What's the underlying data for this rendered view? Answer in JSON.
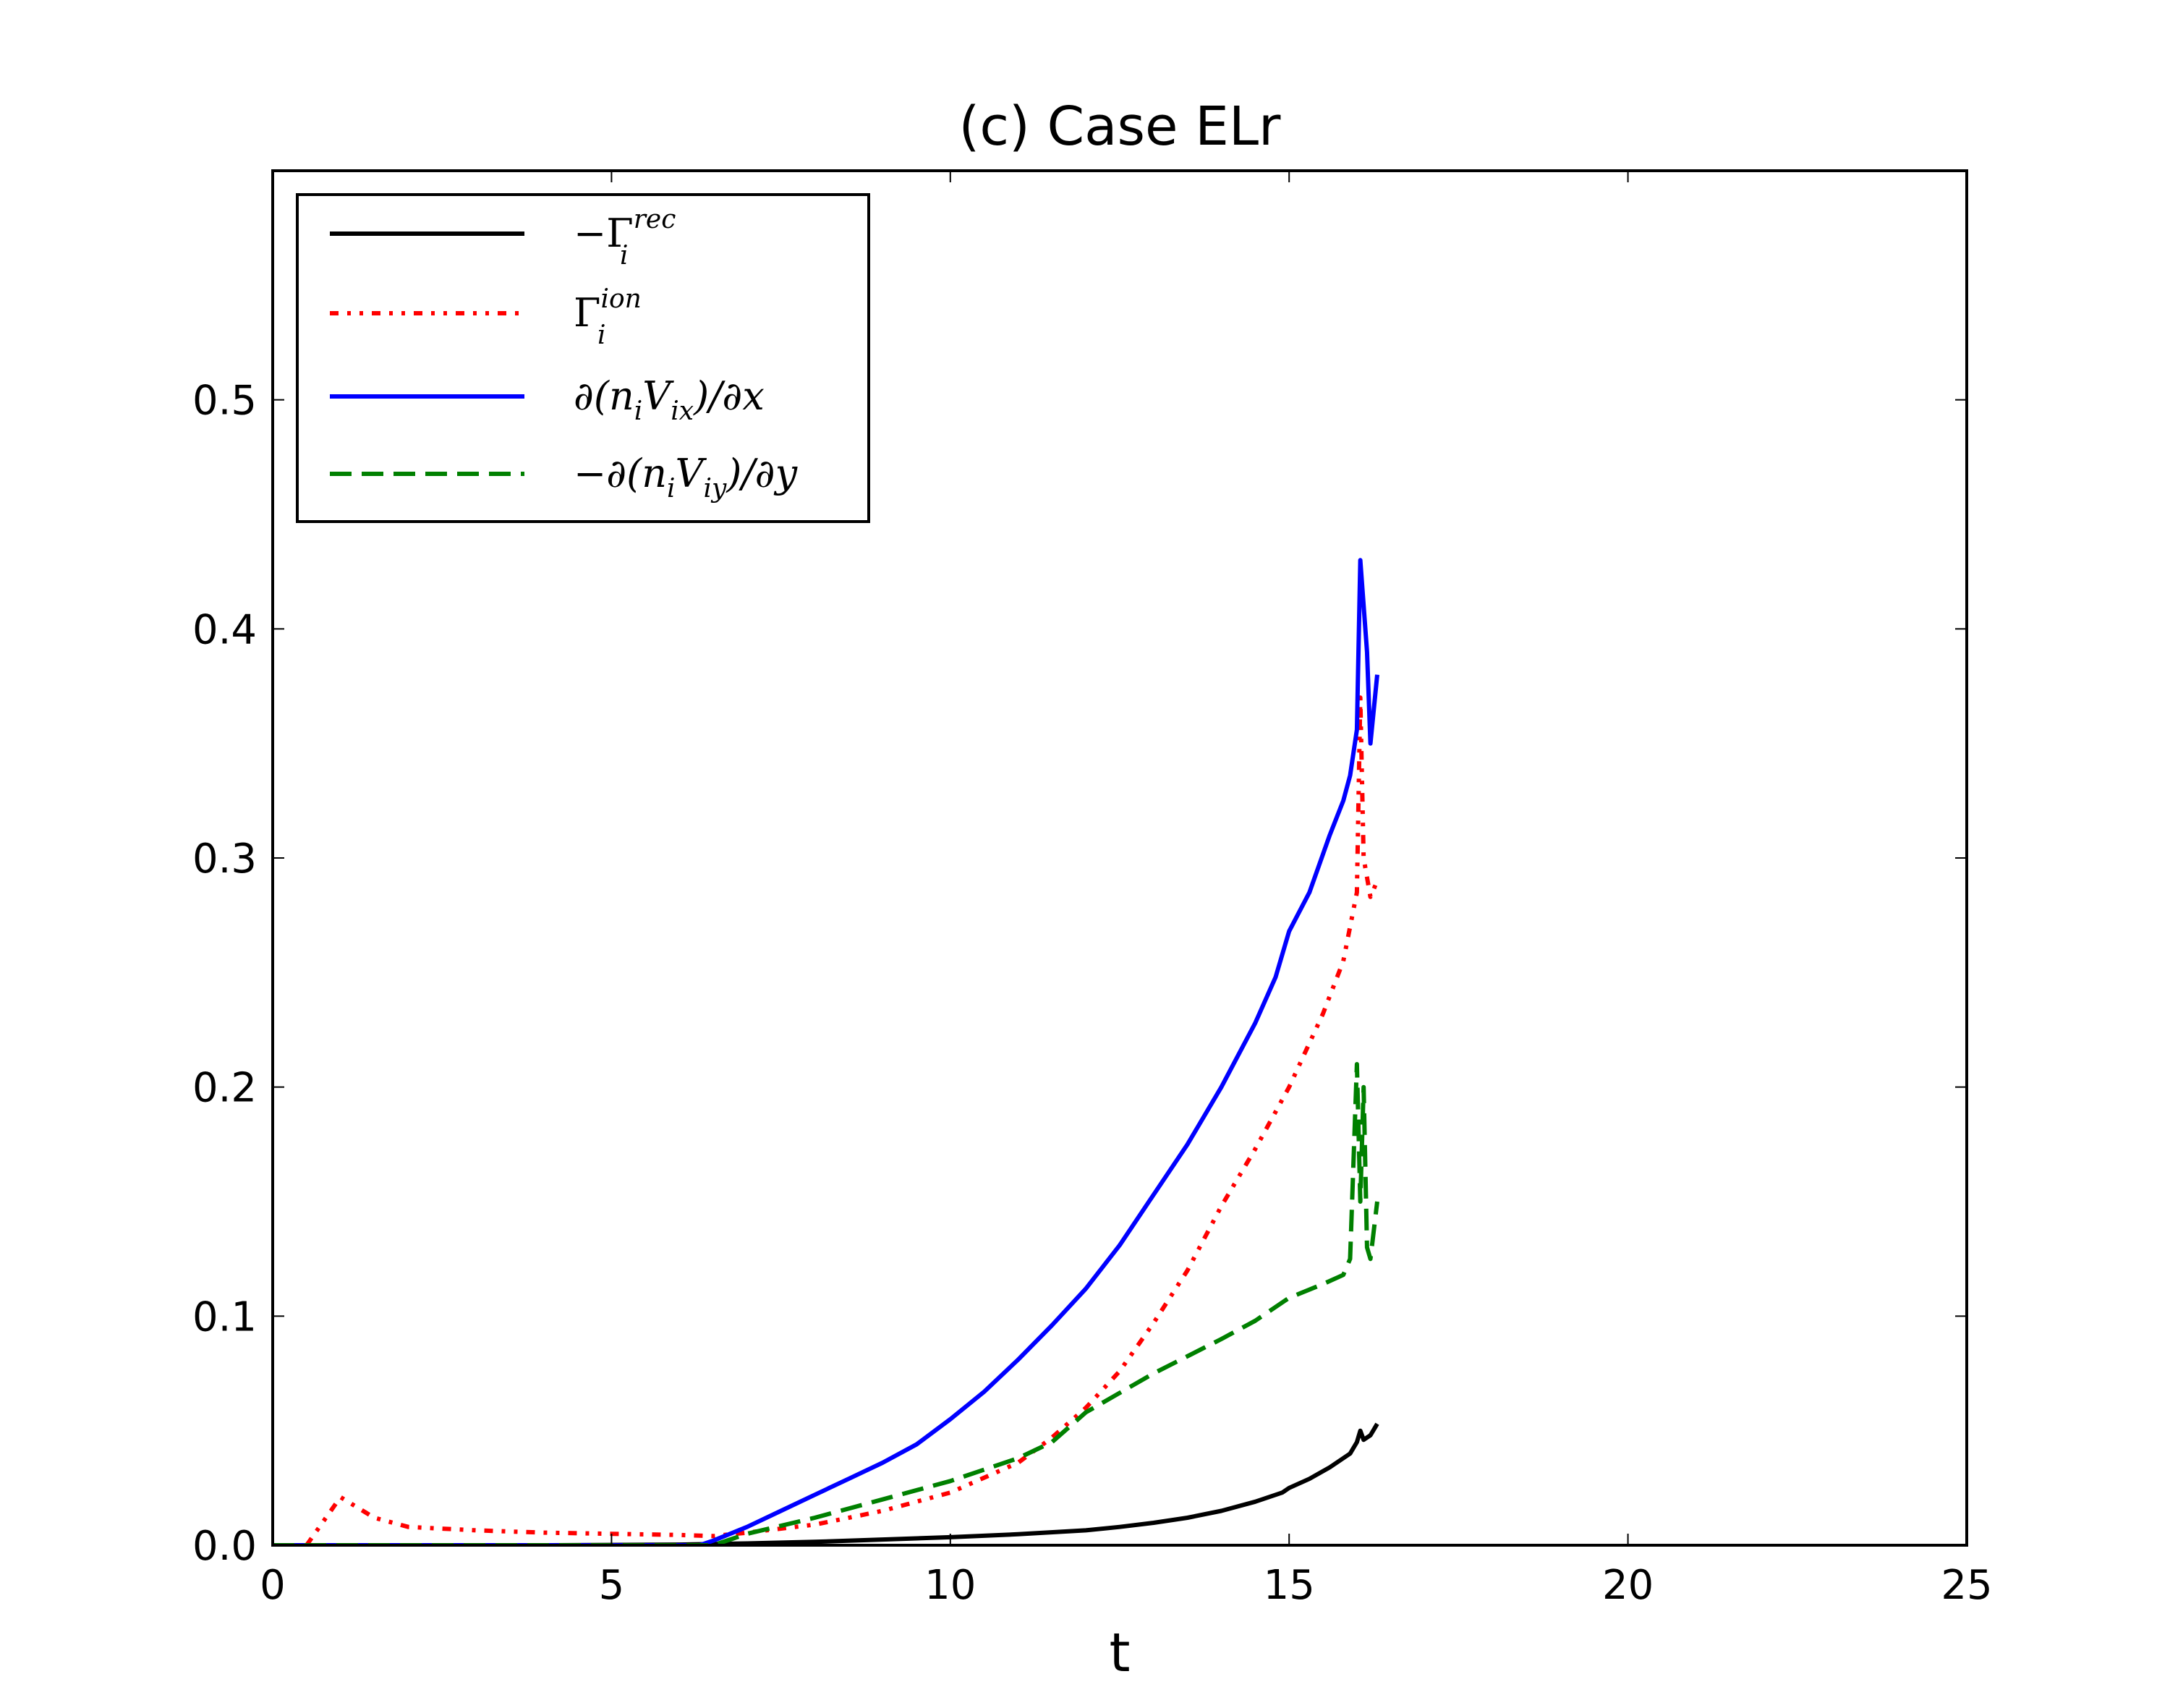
{
  "chart_data": {
    "type": "line",
    "title": "(c) Case ELr",
    "xlabel": "t",
    "ylabel": "",
    "xlim": [
      0,
      25
    ],
    "ylim": [
      0,
      0.6
    ],
    "xticks": [
      0,
      5,
      10,
      15,
      20,
      25
    ],
    "xtick_labels": [
      "0",
      "5",
      "10",
      "15",
      "20",
      "25"
    ],
    "yticks": [
      0.0,
      0.1,
      0.2,
      0.3,
      0.4,
      0.5
    ],
    "ytick_labels": [
      "0.0",
      "0.1",
      "0.2",
      "0.3",
      "0.4",
      "0.5"
    ],
    "grid": false,
    "legend_position": "top-left",
    "series": [
      {
        "name": "-Γ_i^rec",
        "legend": {
          "base": "−Γ",
          "sup": "rec",
          "sub": "i"
        },
        "color": "#000000",
        "style": "solid",
        "x": [
          0.0,
          4,
          6,
          7,
          8,
          9,
          10,
          11,
          12,
          12.5,
          13,
          13.5,
          14,
          14.5,
          14.9,
          15,
          15.3,
          15.6,
          15.9,
          16.0,
          16.05,
          16.1,
          16.2,
          16.3
        ],
        "y": [
          0.0,
          0.0,
          0.0003,
          0.0008,
          0.0015,
          0.0025,
          0.0035,
          0.0048,
          0.0065,
          0.008,
          0.0098,
          0.012,
          0.015,
          0.019,
          0.023,
          0.025,
          0.029,
          0.034,
          0.04,
          0.045,
          0.05,
          0.046,
          0.048,
          0.053
        ]
      },
      {
        "name": "Γ_i^ion",
        "legend": {
          "base": "Γ",
          "sup": "ion",
          "sub": "i"
        },
        "color": "#ff0000",
        "style": "dashdotdot",
        "x": [
          0.5,
          1.0,
          1.5,
          2,
          3,
          4,
          5,
          6,
          6.5,
          7,
          8,
          9,
          10,
          11,
          11.5,
          12,
          12.5,
          13,
          13.5,
          14,
          14.5,
          15,
          15.5,
          15.8,
          16.0,
          16.05,
          16.1,
          16.2,
          16.3
        ],
        "y": [
          0.0,
          0.021,
          0.012,
          0.008,
          0.0065,
          0.0055,
          0.005,
          0.0045,
          0.004,
          0.0055,
          0.009,
          0.015,
          0.023,
          0.036,
          0.047,
          0.06,
          0.076,
          0.097,
          0.12,
          0.148,
          0.173,
          0.2,
          0.232,
          0.255,
          0.285,
          0.37,
          0.3,
          0.283,
          0.29
        ]
      },
      {
        "name": "∂(n_i V_ix)/∂x",
        "legend": {
          "parts": [
            "∂(",
            "n",
            "i",
            "V",
            "ix",
            ")/∂",
            "x"
          ]
        },
        "color": "#0000ff",
        "style": "solid",
        "x": [
          0,
          6.3,
          6.5,
          7,
          7.5,
          8,
          8.5,
          9,
          9.5,
          10,
          10.5,
          11,
          11.5,
          12,
          12.5,
          13,
          13.5,
          14,
          14.5,
          14.8,
          15,
          15.3,
          15.6,
          15.8,
          15.9,
          16.0,
          16.05,
          16.15,
          16.2,
          16.3
        ],
        "y": [
          0.0,
          0.0,
          0.002,
          0.008,
          0.015,
          0.022,
          0.029,
          0.036,
          0.044,
          0.055,
          0.067,
          0.081,
          0.096,
          0.112,
          0.131,
          0.153,
          0.175,
          0.2,
          0.228,
          0.248,
          0.268,
          0.285,
          0.31,
          0.325,
          0.336,
          0.356,
          0.43,
          0.39,
          0.35,
          0.38
        ]
      },
      {
        "name": "-∂(n_i V_iy)/∂y",
        "legend": {
          "parts": [
            "−∂(",
            "n",
            "i",
            "V",
            "iy",
            ")/∂",
            "y"
          ]
        },
        "color": "#008000",
        "style": "dashed",
        "x": [
          0,
          6.5,
          7,
          8,
          9,
          10,
          11,
          11.5,
          12,
          13,
          14,
          14.5,
          15,
          15.5,
          15.8,
          15.9,
          16.0,
          16.05,
          16.1,
          16.15,
          16.2,
          16.3
        ],
        "y": [
          0.0,
          0.0,
          0.005,
          0.012,
          0.02,
          0.028,
          0.038,
          0.045,
          0.058,
          0.075,
          0.09,
          0.098,
          0.108,
          0.114,
          0.118,
          0.125,
          0.21,
          0.15,
          0.2,
          0.13,
          0.125,
          0.15
        ]
      }
    ]
  }
}
